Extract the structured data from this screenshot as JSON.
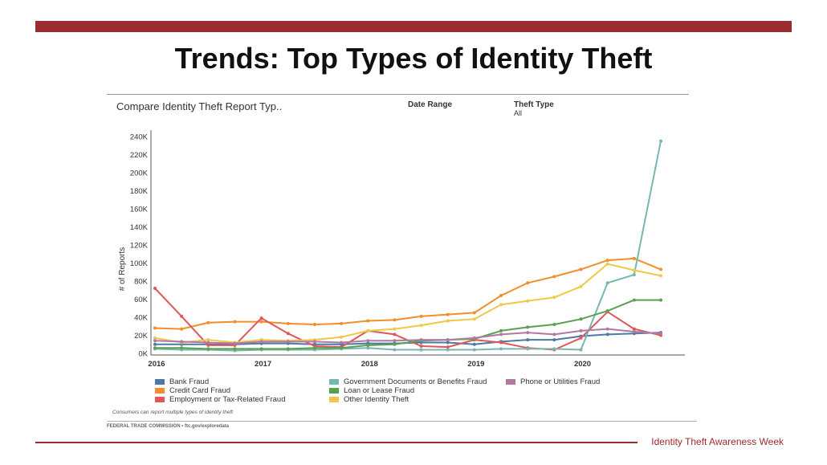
{
  "slide": {
    "title": "Trends: Top Types of Identity Theft",
    "footer": "Identity Theft Awareness Week"
  },
  "panel": {
    "heading": "Compare Identity Theft Report Typ..",
    "date_range_label": "Date Range",
    "theft_type_label": "Theft Type",
    "theft_type_value": "All",
    "footnote": "Consumers can report multiple types of identity theft",
    "source": "FEDERAL TRADE COMMISSION • ftc.gov/exploredata"
  },
  "colors": {
    "brand": "#9a2b2e"
  },
  "chart_data": {
    "type": "line",
    "ylabel": "# of Reports",
    "xlabel": "",
    "ylim": [
      0,
      240000
    ],
    "yticks": [
      0,
      20000,
      40000,
      60000,
      80000,
      100000,
      120000,
      140000,
      160000,
      180000,
      200000,
      220000,
      240000
    ],
    "ytick_labels": [
      "0K",
      "20K",
      "40K",
      "60K",
      "80K",
      "100K",
      "120K",
      "140K",
      "160K",
      "180K",
      "200K",
      "220K",
      "240K"
    ],
    "xlim": [
      2016.0,
      2020.75
    ],
    "x_tick_labels": [
      "2016",
      "2017",
      "2018",
      "2019",
      "2020"
    ],
    "x_ticks": [
      2016,
      2017,
      2018,
      2019,
      2020
    ],
    "x": [
      2016.0,
      2016.25,
      2016.5,
      2016.75,
      2017.0,
      2017.25,
      2017.5,
      2017.75,
      2018.0,
      2018.25,
      2018.5,
      2018.75,
      2019.0,
      2019.25,
      2019.5,
      2019.75,
      2020.0,
      2020.25,
      2020.5,
      2020.75
    ],
    "grid": false,
    "legend_position": "bottom",
    "series": [
      {
        "name": "Bank Fraud",
        "color": "#4e79a7",
        "values": [
          10000,
          10000,
          10000,
          10000,
          11000,
          11000,
          10000,
          10000,
          11000,
          11000,
          12000,
          12000,
          10000,
          13000,
          15000,
          15000,
          19000,
          21000,
          22000,
          23000
        ]
      },
      {
        "name": "Credit Card Fraud",
        "color": "#f28e2b",
        "values": [
          28000,
          27000,
          34000,
          35000,
          35000,
          33000,
          32000,
          33000,
          36000,
          37000,
          41000,
          43000,
          45000,
          64000,
          78000,
          85000,
          93000,
          103000,
          105000,
          93000
        ]
      },
      {
        "name": "Employment or Tax-Related Fraud",
        "color": "#e15759",
        "values": [
          72000,
          41000,
          9000,
          9000,
          39000,
          22000,
          8000,
          7000,
          25000,
          21000,
          8000,
          7000,
          15000,
          12000,
          6000,
          4000,
          17000,
          46000,
          27000,
          20000
        ]
      },
      {
        "name": "Government Documents or Benefits Fraud",
        "color": "#76b7b2",
        "values": [
          5000,
          4000,
          4000,
          3000,
          4000,
          4000,
          4000,
          5000,
          6000,
          4000,
          4000,
          4000,
          4000,
          5000,
          5000,
          5000,
          4000,
          78000,
          87000,
          235000
        ]
      },
      {
        "name": "Loan or Lease Fraud",
        "color": "#59a14f",
        "values": [
          6000,
          6000,
          5000,
          5000,
          5000,
          5000,
          6000,
          6000,
          9000,
          10000,
          14000,
          15000,
          16000,
          25000,
          29000,
          32000,
          38000,
          47000,
          59000,
          59000
        ]
      },
      {
        "name": "Other Identity Theft",
        "color": "#edc948",
        "values": [
          17000,
          12000,
          15000,
          12000,
          15000,
          14000,
          15000,
          18000,
          25000,
          27000,
          31000,
          36000,
          38000,
          54000,
          58000,
          62000,
          74000,
          99000,
          92000,
          86000
        ]
      },
      {
        "name": "Phone or Utilities Fraud",
        "color": "#b07aa1",
        "values": [
          14000,
          13000,
          12000,
          11000,
          13000,
          13000,
          13000,
          12000,
          14000,
          14000,
          15000,
          15000,
          17000,
          21000,
          23000,
          21000,
          25000,
          27000,
          24000,
          22000
        ]
      }
    ]
  }
}
